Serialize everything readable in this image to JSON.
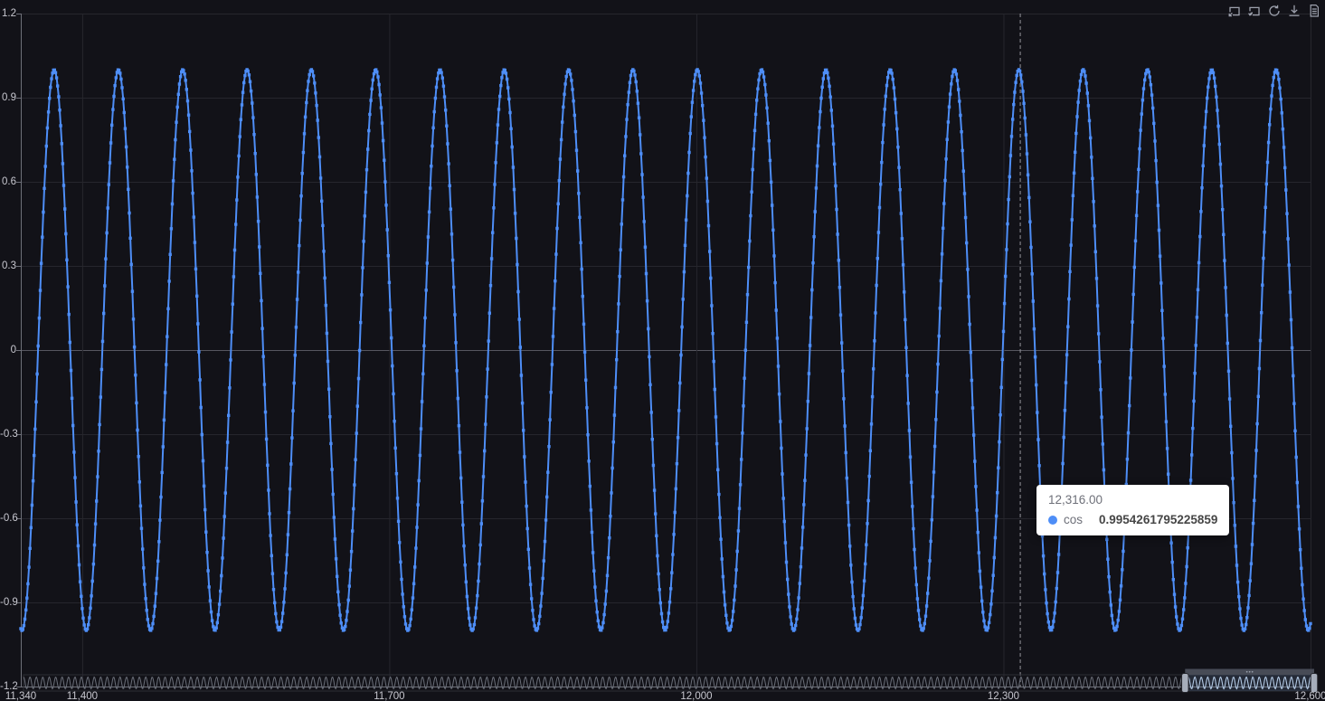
{
  "colors": {
    "background": "#121218",
    "series_blue": "#4E8EF7",
    "grid_line": "#26262d",
    "zero_line": "#56565f",
    "axis_line": "#6E7079",
    "axis_text": "#c7c7cf",
    "crosshair": "#94949c",
    "tooltip_bg": "#ffffff",
    "tooltip_text": "#6E7079",
    "tooltip_value": "#464646",
    "toolbox_icon": "#9da1ad",
    "slider_wave_dim": "#6b6f79",
    "slider_wave_bright": "#bdd1e8",
    "slider_window_fill": "rgba(130,165,220,0.16)",
    "slider_handle": "#a6adba",
    "slider_move_handle": "#474b56"
  },
  "toolbox": {
    "icons": [
      {
        "name": "zoom-select-icon"
      },
      {
        "name": "zoom-reset-icon"
      },
      {
        "name": "restore-icon"
      },
      {
        "name": "save-as-image-icon"
      },
      {
        "name": "data-view-icon"
      }
    ]
  },
  "tooltip": {
    "x_label": "12,316.00",
    "x_value": 12316,
    "series_name": "cos",
    "value": "0.9954261795225859",
    "marker_color": "#4E8EF7"
  },
  "chart_data": {
    "type": "line",
    "title": "",
    "legend_shown": false,
    "grid": true,
    "series": [
      {
        "name": "cos",
        "color": "#4E8EF7",
        "function": "cos(x/10)",
        "divisor": 10,
        "x_start": 11340,
        "x_end": 12600,
        "x_step": 1,
        "symbol": "square",
        "symbol_size": 3.4,
        "example_point": {
          "x": 12316,
          "y": 0.9954261795225859
        }
      }
    ],
    "xaxis": {
      "min": 11340,
      "max": 12600,
      "ticks": [
        {
          "value": 11340,
          "label": "11,340"
        },
        {
          "value": 11400,
          "label": "11,400"
        },
        {
          "value": 11700,
          "label": "11,700"
        },
        {
          "value": 12000,
          "label": "12,000"
        },
        {
          "value": 12300,
          "label": "12,300"
        },
        {
          "value": 12600,
          "label": "12,600"
        }
      ]
    },
    "yaxis": {
      "min": -1.2,
      "max": 1.2,
      "interval": 0.3,
      "ticks": [
        {
          "value": 1.2,
          "label": "1.2"
        },
        {
          "value": 0.9,
          "label": "0.9"
        },
        {
          "value": 0.6,
          "label": "0.6"
        },
        {
          "value": 0.3,
          "label": "0.3"
        },
        {
          "value": 0,
          "label": "0"
        },
        {
          "value": -0.3,
          "label": "-0.3"
        },
        {
          "value": -0.6,
          "label": "-0.6"
        },
        {
          "value": -0.9,
          "label": "-0.9"
        },
        {
          "value": -1.2,
          "label": "-1.2"
        }
      ],
      "zero_line_highlight": true
    },
    "crosshair_x": 12316,
    "datazoom": {
      "full_min": 0,
      "full_max": 12600,
      "start_pct": 90,
      "end_pct": 100
    }
  }
}
